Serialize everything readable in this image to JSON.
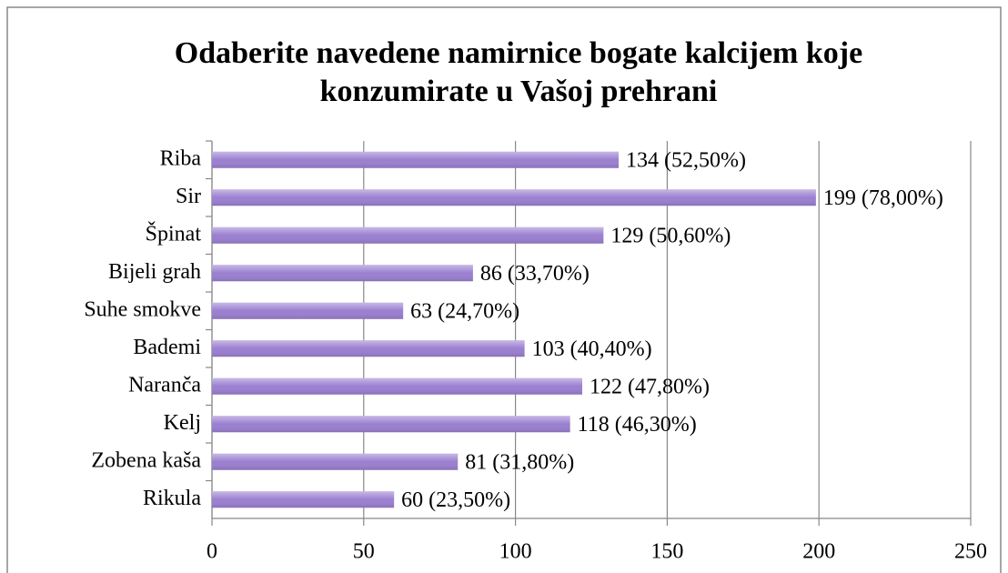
{
  "chart_data": {
    "type": "bar",
    "orientation": "horizontal",
    "title": "Odaberite navedene namirnice bogate kalcijem koje konzumirate u Vašoj prehrani",
    "categories": [
      "Riba",
      "Sir",
      "Špinat",
      "Bijeli grah",
      "Suhe smokve",
      "Bademi",
      "Naranča",
      "Kelj",
      "Zobena kaša",
      "Rikula"
    ],
    "values": [
      134,
      199,
      129,
      86,
      63,
      103,
      122,
      118,
      81,
      60
    ],
    "value_labels": [
      "134 (52,50%)",
      "199 (78,00%)",
      "129 (50,60%)",
      "86 (33,70%)",
      "63 (24,70%)",
      "103 (40,40%)",
      "122 (47,80%)",
      "118 (46,30%)",
      "81 (31,80%)",
      "60 (23,50%)"
    ],
    "color": "#9a7fd0",
    "xlim": [
      0,
      250
    ],
    "xticks": [
      0,
      50,
      100,
      150,
      200,
      250
    ],
    "grid": true
  }
}
